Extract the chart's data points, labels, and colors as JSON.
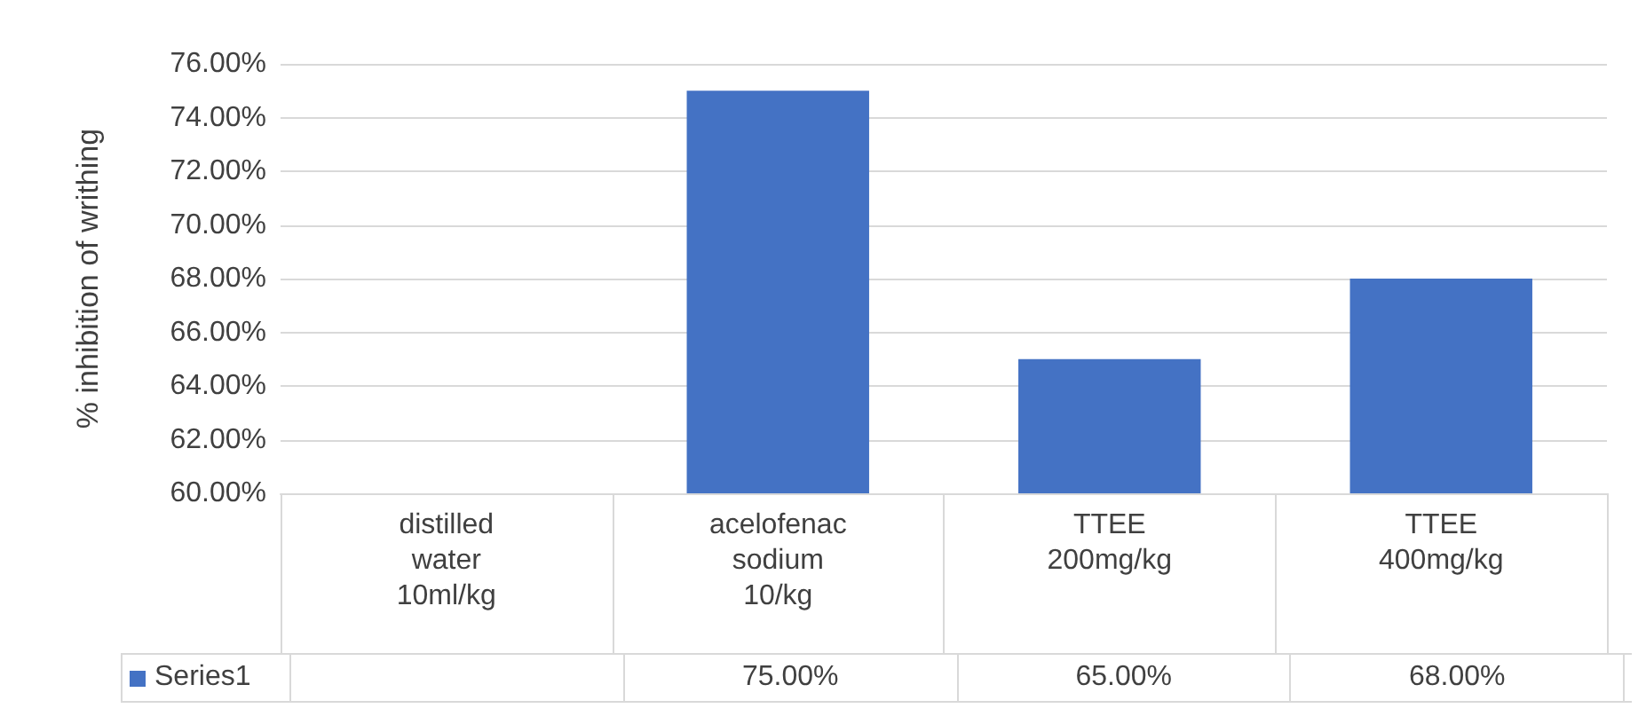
{
  "chart_data": {
    "type": "bar",
    "ylabel": "% inhibition of writhing",
    "categories": [
      "distilled\nwater\n10ml/kg",
      "acelofenac\nsodium\n10/kg",
      "TTEE\n200mg/kg",
      "TTEE\n400mg/kg"
    ],
    "series": [
      {
        "name": "Series1",
        "color": "#4472c4",
        "values": [
          null,
          75,
          65,
          68
        ],
        "value_labels": [
          null,
          "75.00%",
          "65.00%",
          "68.00%"
        ]
      }
    ],
    "ylim": [
      60,
      76
    ],
    "yticks": [
      {
        "value": 60,
        "label": "60.00%"
      },
      {
        "value": 62,
        "label": "62.00%"
      },
      {
        "value": 64,
        "label": "64.00%"
      },
      {
        "value": 66,
        "label": "66.00%"
      },
      {
        "value": 68,
        "label": "68.00%"
      },
      {
        "value": 70,
        "label": "70.00%"
      },
      {
        "value": 72,
        "label": "72.00%"
      },
      {
        "value": 74,
        "label": "74.00%"
      },
      {
        "value": 76,
        "label": "76.00%"
      }
    ],
    "grid": "y",
    "legend": "bottom"
  }
}
